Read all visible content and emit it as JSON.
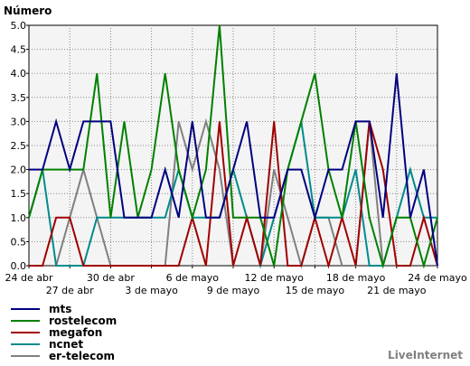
{
  "watermark": "LiveInternet",
  "chart_data": {
    "type": "line",
    "title": "Número",
    "xlabel": "",
    "ylabel": "",
    "ylim": [
      0,
      5
    ],
    "yticks": [
      "0.0",
      "0.5",
      "1.0",
      "1.5",
      "2.0",
      "2.5",
      "3.0",
      "3.5",
      "4.0",
      "4.5",
      "5.0"
    ],
    "grid": true,
    "legend_position": "bottom-left",
    "x": [
      "24 abr",
      "25 abr",
      "26 abr",
      "27 abr",
      "28 abr",
      "29 abr",
      "30 abr",
      "1 may",
      "2 may",
      "3 may",
      "4 may",
      "5 may",
      "6 may",
      "7 may",
      "8 may",
      "9 may",
      "10 may",
      "11 may",
      "12 may",
      "13 may",
      "14 may",
      "15 may",
      "16 may",
      "17 may",
      "18 may",
      "19 may",
      "20 may",
      "21 may",
      "22 may",
      "23 may",
      "24 may"
    ],
    "xtick_labels": [
      {
        "label": "24 de abr",
        "row": 1
      },
      {
        "label": "27 de abr",
        "row": 2
      },
      {
        "label": "30 de abr",
        "row": 1
      },
      {
        "label": "3 de mayo",
        "row": 2
      },
      {
        "label": "6 de mayo",
        "row": 1
      },
      {
        "label": "9 de mayo",
        "row": 2
      },
      {
        "label": "12 de mayo",
        "row": 1
      },
      {
        "label": "15 de mayo",
        "row": 2
      },
      {
        "label": "18 de mayo",
        "row": 1
      },
      {
        "label": "21 de mayo",
        "row": 2
      },
      {
        "label": "24 de mayo",
        "row": 1
      }
    ],
    "series": [
      {
        "name": "mts",
        "color": "#000080",
        "values": [
          2,
          2,
          3,
          2,
          3,
          3,
          3,
          1,
          1,
          1,
          2,
          1,
          3,
          1,
          1,
          2,
          3,
          1,
          1,
          2,
          2,
          1,
          2,
          2,
          3,
          3,
          1,
          4,
          1,
          2,
          0
        ]
      },
      {
        "name": "rostelecom",
        "color": "#008000",
        "values": [
          1,
          2,
          2,
          2,
          2,
          4,
          1,
          3,
          1,
          2,
          4,
          2,
          1,
          2,
          5,
          1,
          1,
          1,
          0,
          2,
          3,
          4,
          2,
          1,
          3,
          1,
          0,
          1,
          1,
          0,
          1
        ]
      },
      {
        "name": "megafon",
        "color": "#a00000",
        "values": [
          0,
          0,
          1,
          1,
          0,
          0,
          0,
          0,
          0,
          0,
          0,
          0,
          1,
          0,
          3,
          0,
          1,
          0,
          3,
          0,
          0,
          1,
          0,
          1,
          0,
          3,
          2,
          0,
          0,
          1,
          0
        ]
      },
      {
        "name": "ncnet",
        "color": "#008b8b",
        "values": [
          1,
          2,
          0,
          0,
          0,
          1,
          1,
          1,
          1,
          1,
          1,
          2,
          1,
          1,
          1,
          2,
          1,
          0,
          1,
          2,
          3,
          1,
          1,
          1,
          2,
          0,
          0,
          1,
          2,
          1,
          1
        ]
      },
      {
        "name": "er-telecom",
        "color": "#808080",
        "values": [
          0,
          0,
          0,
          1,
          2,
          1,
          0,
          0,
          0,
          0,
          0,
          3,
          2,
          3,
          2,
          0,
          0,
          0,
          2,
          1,
          0,
          1,
          1,
          0,
          0,
          3,
          0,
          0,
          0,
          0,
          0
        ]
      }
    ]
  }
}
